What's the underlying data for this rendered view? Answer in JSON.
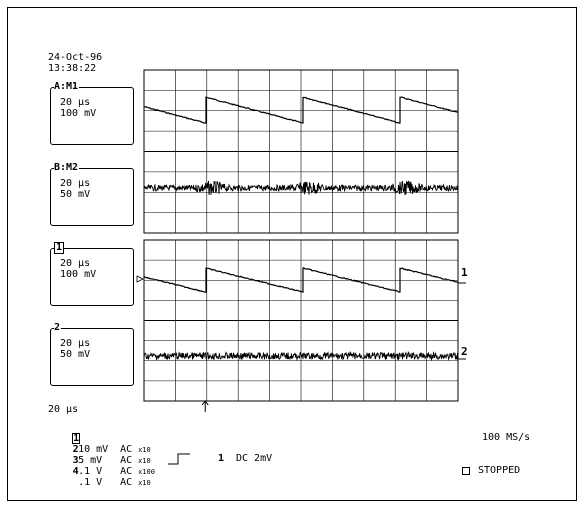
{
  "header": {
    "date": "24-Oct-96",
    "time": "13:38:22"
  },
  "channels": [
    {
      "id": "A",
      "title": "A:M1",
      "time": "20 µs",
      "volts": "100 mV",
      "trace": "sawtooth"
    },
    {
      "id": "B",
      "title": "B:M2",
      "time": "20 µs",
      "volts": "50 mV",
      "trace": "noise-bursts"
    },
    {
      "id": "1",
      "title": "1",
      "time": "20 µs",
      "volts": "100 mV",
      "trace": "sawtooth",
      "marker": "1"
    },
    {
      "id": "2",
      "title": "2",
      "time": "20 µs",
      "volts": "50 mV",
      "trace": "noise",
      "marker": "2"
    }
  ],
  "timebase": "20 µs",
  "channel_settings": [
    {
      "num": "1",
      "volts": "10 mV",
      "coupling": "AC",
      "probe": "x10"
    },
    {
      "num": "2",
      "volts": "5 mV",
      "coupling": "AC",
      "probe": "x10"
    },
    {
      "num": "3",
      "volts": ".1 V",
      "coupling": "AC",
      "probe": "x100"
    },
    {
      "num": "4",
      "volts": ".1 V",
      "coupling": "AC",
      "probe": "x10"
    }
  ],
  "trigger": {
    "channel": "1",
    "coupling": "DC 2mV"
  },
  "sample_rate": "100 MS/s",
  "status": "STOPPED",
  "icons": {
    "trigger_slope": "rising-edge-icon",
    "trigger_position": "up-arrow-icon",
    "status_indicator": "square-icon"
  }
}
